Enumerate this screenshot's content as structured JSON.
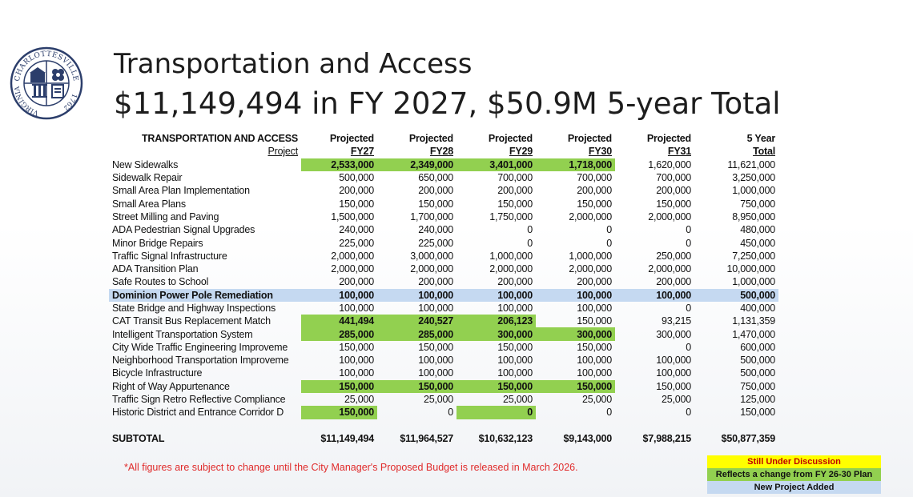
{
  "seal": {
    "top_text": "CHARLOTTESVILLE",
    "left_text": "VIRGINIA",
    "year": "1762"
  },
  "title_line1": "Transportation and Access",
  "title_line2": "$11,149,494 in FY 2027, $50.9M 5-year Total",
  "table": {
    "heading": "TRANSPORTATION AND ACCESS",
    "project_label": "Project",
    "columns": [
      {
        "top": "Projected",
        "bottom": "FY27"
      },
      {
        "top": "Projected",
        "bottom": "FY28"
      },
      {
        "top": "Projected",
        "bottom": "FY29"
      },
      {
        "top": "Projected",
        "bottom": "FY30"
      },
      {
        "top": "Projected",
        "bottom": "FY31"
      },
      {
        "top": "5 Year",
        "bottom": "Total"
      }
    ],
    "rows": [
      {
        "name": "New Sidewalks",
        "values": [
          "2,533,000",
          "2,349,000",
          "3,401,000",
          "1,718,000",
          "1,620,000",
          "11,621,000"
        ],
        "highlight": [
          true,
          true,
          true,
          true,
          false,
          false
        ],
        "row_style": ""
      },
      {
        "name": "Sidewalk Repair",
        "values": [
          "500,000",
          "650,000",
          "700,000",
          "700,000",
          "700,000",
          "3,250,000"
        ],
        "highlight": [
          false,
          false,
          false,
          false,
          false,
          false
        ],
        "row_style": ""
      },
      {
        "name": "Small Area Plan Implementation",
        "values": [
          "200,000",
          "200,000",
          "200,000",
          "200,000",
          "200,000",
          "1,000,000"
        ],
        "highlight": [
          false,
          false,
          false,
          false,
          false,
          false
        ],
        "row_style": ""
      },
      {
        "name": "Small Area Plans",
        "values": [
          "150,000",
          "150,000",
          "150,000",
          "150,000",
          "150,000",
          "750,000"
        ],
        "highlight": [
          false,
          false,
          false,
          false,
          false,
          false
        ],
        "row_style": ""
      },
      {
        "name": "Street Milling and Paving",
        "values": [
          "1,500,000",
          "1,700,000",
          "1,750,000",
          "2,000,000",
          "2,000,000",
          "8,950,000"
        ],
        "highlight": [
          false,
          false,
          false,
          false,
          false,
          false
        ],
        "row_style": ""
      },
      {
        "name": "ADA Pedestrian Signal Upgrades",
        "values": [
          "240,000",
          "240,000",
          "0",
          "0",
          "0",
          "480,000"
        ],
        "highlight": [
          false,
          false,
          false,
          false,
          false,
          false
        ],
        "row_style": ""
      },
      {
        "name": "Minor Bridge Repairs",
        "values": [
          "225,000",
          "225,000",
          "0",
          "0",
          "0",
          "450,000"
        ],
        "highlight": [
          false,
          false,
          false,
          false,
          false,
          false
        ],
        "row_style": ""
      },
      {
        "name": "Traffic Signal Infrastructure",
        "values": [
          "2,000,000",
          "3,000,000",
          "1,000,000",
          "1,000,000",
          "250,000",
          "7,250,000"
        ],
        "highlight": [
          false,
          false,
          false,
          false,
          false,
          false
        ],
        "row_style": ""
      },
      {
        "name": "ADA Transition Plan",
        "values": [
          "2,000,000",
          "2,000,000",
          "2,000,000",
          "2,000,000",
          "2,000,000",
          "10,000,000"
        ],
        "highlight": [
          false,
          false,
          false,
          false,
          false,
          false
        ],
        "row_style": ""
      },
      {
        "name": "Safe Routes to School",
        "values": [
          "200,000",
          "200,000",
          "200,000",
          "200,000",
          "200,000",
          "1,000,000"
        ],
        "highlight": [
          false,
          false,
          false,
          false,
          false,
          false
        ],
        "row_style": ""
      },
      {
        "name": "Dominion Power Pole Remediation",
        "values": [
          "100,000",
          "100,000",
          "100,000",
          "100,000",
          "100,000",
          "500,000"
        ],
        "highlight": [
          false,
          false,
          false,
          false,
          false,
          false
        ],
        "row_style": "blue"
      },
      {
        "name": "State Bridge and Highway Inspections",
        "values": [
          "100,000",
          "100,000",
          "100,000",
          "100,000",
          "0",
          "400,000"
        ],
        "highlight": [
          false,
          false,
          false,
          false,
          false,
          false
        ],
        "row_style": ""
      },
      {
        "name": "CAT Transit Bus Replacement Match",
        "values": [
          "441,494",
          "240,527",
          "206,123",
          "150,000",
          "93,215",
          "1,131,359"
        ],
        "highlight": [
          true,
          true,
          true,
          false,
          false,
          false
        ],
        "row_style": ""
      },
      {
        "name": "Intelligent Transportation System",
        "values": [
          "285,000",
          "285,000",
          "300,000",
          "300,000",
          "300,000",
          "1,470,000"
        ],
        "highlight": [
          true,
          true,
          true,
          true,
          false,
          false
        ],
        "row_style": ""
      },
      {
        "name": "City Wide Traffic Engineering Improveme",
        "values": [
          "150,000",
          "150,000",
          "150,000",
          "150,000",
          "0",
          "600,000"
        ],
        "highlight": [
          false,
          false,
          false,
          false,
          false,
          false
        ],
        "row_style": ""
      },
      {
        "name": "Neighborhood Transportation Improveme",
        "values": [
          "100,000",
          "100,000",
          "100,000",
          "100,000",
          "100,000",
          "500,000"
        ],
        "highlight": [
          false,
          false,
          false,
          false,
          false,
          false
        ],
        "row_style": ""
      },
      {
        "name": "Bicycle Infrastructure",
        "values": [
          "100,000",
          "100,000",
          "100,000",
          "100,000",
          "100,000",
          "500,000"
        ],
        "highlight": [
          false,
          false,
          false,
          false,
          false,
          false
        ],
        "row_style": ""
      },
      {
        "name": "Right of Way Appurtenance",
        "values": [
          "150,000",
          "150,000",
          "150,000",
          "150,000",
          "150,000",
          "750,000"
        ],
        "highlight": [
          true,
          true,
          true,
          true,
          false,
          false
        ],
        "row_style": ""
      },
      {
        "name": "Traffic Sign Retro Reflective Compliance",
        "values": [
          "25,000",
          "25,000",
          "25,000",
          "25,000",
          "25,000",
          "125,000"
        ],
        "highlight": [
          false,
          false,
          false,
          false,
          false,
          false
        ],
        "row_style": ""
      },
      {
        "name": "Historic District and Entrance Corridor D",
        "values": [
          "150,000",
          "0",
          "0",
          "0",
          "0",
          "150,000"
        ],
        "highlight": [
          true,
          false,
          true,
          false,
          false,
          false
        ],
        "row_style": ""
      }
    ],
    "subtotal": {
      "label": "SUBTOTAL",
      "values": [
        "$11,149,494",
        "$11,964,527",
        "$10,632,123",
        "$9,143,000",
        "$7,988,215",
        "$50,877,359"
      ]
    }
  },
  "footnote": "*All figures are subject to change until the City Manager's Proposed Budget is released in March 2026.",
  "legend": {
    "yellow": "Still Under Discussion",
    "green": "Reflects a change from FY 26-30 Plan",
    "blue": "New Project Added"
  },
  "colors": {
    "highlight_green": "#92d050",
    "highlight_blue": "#c5d9f1",
    "highlight_yellow": "#ffff00",
    "footnote_red": "#e02b2b",
    "seal_navy": "#2c3e6b"
  }
}
